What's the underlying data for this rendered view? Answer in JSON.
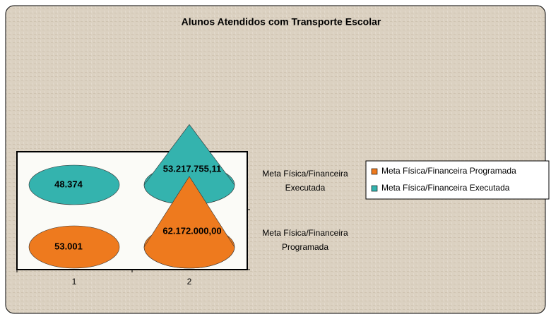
{
  "chart_data": {
    "type": "cone3d",
    "title": "Alunos Atendidos com Transporte Escolar",
    "categories": [
      "1",
      "2"
    ],
    "series": [
      {
        "name": "Meta Física/Financeira Programada",
        "color": "#ee7a1e",
        "values": [
          53001,
          62172000.0
        ],
        "value_labels": [
          "53.001",
          "62.172.000,00"
        ]
      },
      {
        "name": "Meta Física/Financeira Executada",
        "color": "#34b3ae",
        "values": [
          48374,
          53217755.11
        ],
        "value_labels": [
          "48.374",
          "53.217.755,11"
        ]
      }
    ],
    "legend": "right"
  }
}
